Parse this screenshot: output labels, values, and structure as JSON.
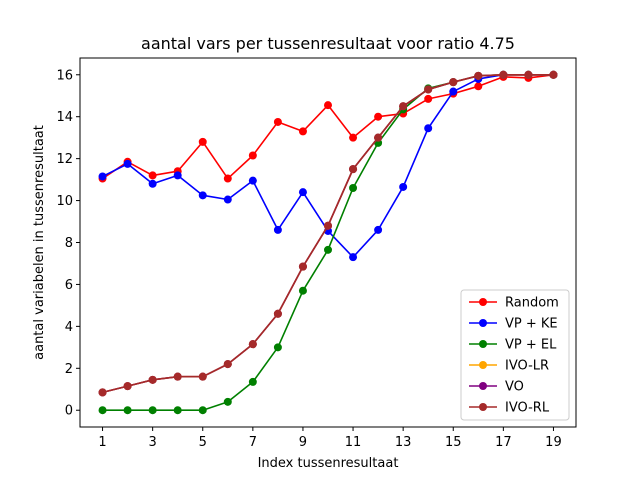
{
  "chart_data": {
    "type": "line",
    "title": "aantal vars per tussenresultaat voor ratio 4.75",
    "xlabel": "Index tussenresultaat",
    "ylabel": "aantal variabelen in tussenresultaat",
    "xlim": [
      0.1,
      19.9
    ],
    "ylim": [
      -0.8,
      16.8
    ],
    "xticks": [
      1,
      3,
      5,
      7,
      9,
      11,
      13,
      15,
      17,
      19
    ],
    "yticks": [
      0,
      2,
      4,
      6,
      8,
      10,
      12,
      14,
      16
    ],
    "grid": false,
    "legend_position": "lower right",
    "x": [
      1,
      2,
      3,
      4,
      5,
      6,
      7,
      8,
      9,
      10,
      11,
      12,
      13,
      14,
      15,
      16,
      17,
      18,
      19
    ],
    "series": [
      {
        "name": "Random",
        "color": "#ff0000",
        "values": [
          11.05,
          11.85,
          11.2,
          11.4,
          12.8,
          11.05,
          12.15,
          13.75,
          13.3,
          14.55,
          13.0,
          14.0,
          14.15,
          14.85,
          15.1,
          15.45,
          15.9,
          15.85,
          16.0
        ]
      },
      {
        "name": "VP + KE",
        "color": "#0000ff",
        "values": [
          11.15,
          11.75,
          10.8,
          11.2,
          10.25,
          10.05,
          10.95,
          8.6,
          10.4,
          8.55,
          7.3,
          8.6,
          10.65,
          13.45,
          15.2,
          15.8,
          16.0,
          16.0,
          16.0
        ]
      },
      {
        "name": "VP + EL",
        "color": "#008000",
        "values": [
          0.0,
          0.0,
          0.0,
          0.0,
          0.0,
          0.4,
          1.35,
          3.0,
          5.7,
          7.65,
          10.6,
          12.75,
          14.35,
          15.35,
          15.65,
          15.95,
          16.0,
          16.0,
          16.0
        ]
      },
      {
        "name": "IVO-LR",
        "color": "#ffa500",
        "values": [
          0.85,
          1.15,
          1.45,
          1.6,
          1.6,
          2.2,
          3.15,
          4.6,
          6.85,
          8.8,
          11.5,
          13.0,
          14.5,
          15.3,
          15.65,
          15.95,
          16.0,
          16.0,
          16.0
        ]
      },
      {
        "name": "VO",
        "color": "#800080",
        "values": [
          0.85,
          1.15,
          1.45,
          1.6,
          1.6,
          2.2,
          3.15,
          4.6,
          6.85,
          8.8,
          11.5,
          13.0,
          14.5,
          15.3,
          15.65,
          15.95,
          16.0,
          16.0,
          16.0
        ]
      },
      {
        "name": "IVO-RL",
        "color": "#a52a2a",
        "values": [
          0.85,
          1.15,
          1.45,
          1.6,
          1.6,
          2.2,
          3.15,
          4.6,
          6.85,
          8.8,
          11.5,
          13.0,
          14.5,
          15.3,
          15.65,
          15.95,
          16.0,
          16.0,
          16.0
        ]
      }
    ]
  }
}
